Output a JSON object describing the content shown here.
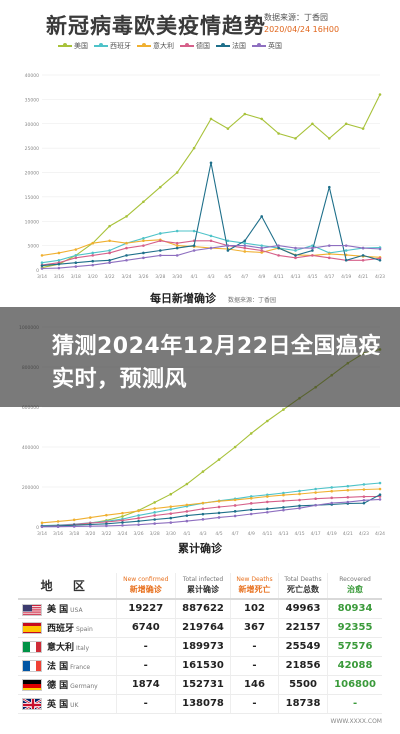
{
  "header": {
    "title": "新冠病毒欧美疫情趋势",
    "source": "数据来源：丁香园",
    "updated": "2020/04/24 16H00"
  },
  "legend": [
    {
      "name": "美国",
      "color": "#a8c23a"
    },
    {
      "name": "西班牙",
      "color": "#4ec3c9"
    },
    {
      "name": "意大利",
      "color": "#f0b030"
    },
    {
      "name": "德国",
      "color": "#d6608a"
    },
    {
      "name": "法国",
      "color": "#1e6f8a"
    },
    {
      "name": "英国",
      "color": "#8e6fc0"
    }
  ],
  "overlay": {
    "headline": "猜测2024年12月22日全国瘟疫实时，预测风"
  },
  "chart1_caption": "每日新增确诊",
  "chart1_caption_small": "数据来源：丁香园",
  "chart2_caption": "累计确诊",
  "chart_data": [
    {
      "type": "line",
      "title": "每日新增确诊",
      "x": [
        "3/14",
        "3/16",
        "3/18",
        "3/20",
        "3/22",
        "3/24",
        "3/26",
        "3/28",
        "3/30",
        "4/1",
        "4/3",
        "4/5",
        "4/7",
        "4/9",
        "4/11",
        "4/13",
        "4/15",
        "4/17",
        "4/19",
        "4/21",
        "4/23"
      ],
      "ylim": [
        0,
        40000
      ],
      "yticks": [
        "0",
        "5000",
        "10000",
        "15000",
        "20000",
        "25000",
        "30000",
        "35000",
        "40000"
      ],
      "series": [
        {
          "name": "美国",
          "color": "#a8c23a",
          "values": [
            500,
            1200,
            3000,
            5500,
            9000,
            11000,
            14000,
            17000,
            20000,
            25000,
            31000,
            29000,
            32000,
            31000,
            28000,
            27000,
            30000,
            27000,
            30000,
            29000,
            36000
          ]
        },
        {
          "name": "西班牙",
          "color": "#4ec3c9",
          "values": [
            1500,
            2000,
            3000,
            3500,
            4000,
            5500,
            6500,
            7500,
            8000,
            8000,
            7000,
            6000,
            5500,
            5000,
            4500,
            4000,
            5000,
            3500,
            4000,
            4500,
            4600
          ]
        },
        {
          "name": "意大利",
          "color": "#f0b030",
          "values": [
            3000,
            3500,
            4200,
            5500,
            6000,
            5500,
            6000,
            6200,
            5000,
            4800,
            4500,
            4300,
            3800,
            3600,
            4500,
            3100,
            3000,
            3300,
            3100,
            2800,
            2600
          ]
        },
        {
          "name": "德国",
          "color": "#d6608a",
          "values": [
            1000,
            1500,
            2500,
            3000,
            3500,
            4500,
            5000,
            6000,
            5500,
            6000,
            6000,
            5000,
            4500,
            4000,
            3000,
            2500,
            3000,
            2500,
            2000,
            2000,
            2400
          ]
        },
        {
          "name": "法国",
          "color": "#1e6f8a",
          "values": [
            900,
            1200,
            1500,
            1800,
            2000,
            3000,
            3500,
            4000,
            4500,
            5000,
            22000,
            4000,
            6000,
            11000,
            4500,
            3000,
            4000,
            17000,
            2000,
            3000,
            2000
          ]
        },
        {
          "name": "英国",
          "color": "#8e6fc0",
          "values": [
            300,
            400,
            700,
            1000,
            1500,
            2000,
            2500,
            3000,
            3000,
            4000,
            4500,
            5000,
            5000,
            4500,
            5000,
            4500,
            4500,
            5000,
            5000,
            4500,
            4300
          ]
        }
      ]
    },
    {
      "type": "line",
      "title": "累计确诊",
      "x": [
        "3/14",
        "3/16",
        "3/18",
        "3/20",
        "3/22",
        "3/24",
        "3/26",
        "3/28",
        "3/30",
        "4/1",
        "4/3",
        "4/5",
        "4/7",
        "4/9",
        "4/11",
        "4/13",
        "4/15",
        "4/17",
        "4/19",
        "4/21",
        "4/23",
        "4/24"
      ],
      "ylim": [
        0,
        1000000
      ],
      "yticks": [
        "0",
        "200000",
        "400000",
        "600000",
        "800000",
        "1000000"
      ],
      "series": [
        {
          "name": "美国",
          "color": "#a8c23a",
          "values": [
            2700,
            4600,
            9400,
            19000,
            33000,
            53000,
            83000,
            123000,
            164000,
            215000,
            277000,
            337000,
            400000,
            468000,
            530000,
            587000,
            644000,
            699000,
            759000,
            819000,
            869000,
            887622
          ]
        },
        {
          "name": "西班牙",
          "color": "#4ec3c9",
          "values": [
            6400,
            9900,
            13900,
            21000,
            28600,
            39700,
            57800,
            73200,
            87900,
            104000,
            119000,
            131000,
            141000,
            153000,
            161000,
            170000,
            180000,
            190000,
            198000,
            204000,
            213000,
            219764
          ]
        },
        {
          "name": "意大利",
          "color": "#f0b030",
          "values": [
            21000,
            27900,
            35700,
            47000,
            59100,
            69200,
            80500,
            92500,
            101700,
            110600,
            119800,
            128900,
            135600,
            143600,
            152300,
            159500,
            165100,
            172400,
            178900,
            183900,
            187300,
            189973
          ]
        },
        {
          "name": "德国",
          "color": "#d6608a",
          "values": [
            4600,
            7300,
            12300,
            19800,
            24900,
            32900,
            43900,
            57700,
            66900,
            77900,
            91100,
            100100,
            107700,
            118200,
            125400,
            130400,
            134800,
            141400,
            145700,
            148500,
            151800,
            152731
          ]
        },
        {
          "name": "法国",
          "color": "#1e6f8a",
          "values": [
            4500,
            5400,
            9100,
            12600,
            16000,
            22300,
            29100,
            37500,
            44500,
            56900,
            64300,
            70500,
            78200,
            86300,
            90700,
            98000,
            106200,
            109200,
            112600,
            117300,
            119200,
            161530
          ]
        },
        {
          "name": "英国",
          "color": "#8e6fc0",
          "values": [
            1100,
            1500,
            2600,
            4000,
            5700,
            8100,
            11600,
            17100,
            22100,
            29500,
            38200,
            47800,
            55200,
            65000,
            73800,
            84300,
            94000,
            108700,
            120000,
            124700,
            133500,
            138078
          ]
        }
      ]
    }
  ],
  "table": {
    "headers": [
      {
        "title": "地 区",
        "sub": ""
      },
      {
        "title": "新增确诊",
        "sub": "New confirmed"
      },
      {
        "title": "累计确诊",
        "sub": "Total infected"
      },
      {
        "title": "新增死亡",
        "sub": "New Deaths"
      },
      {
        "title": "死亡总数",
        "sub": "Total Deaths"
      },
      {
        "title": "治愈",
        "sub": "Recovered"
      }
    ],
    "rows": [
      {
        "cn": "美 国",
        "en": "USA",
        "flag": "usa",
        "new_confirmed": "19227",
        "total": "887622",
        "new_deaths": "102",
        "deaths": "49963",
        "recovered": "80934"
      },
      {
        "cn": "西班牙",
        "en": "Spain",
        "flag": "spain",
        "new_confirmed": "6740",
        "total": "219764",
        "new_deaths": "367",
        "deaths": "22157",
        "recovered": "92355"
      },
      {
        "cn": "意大利",
        "en": "Italy",
        "flag": "italy",
        "new_confirmed": "-",
        "total": "189973",
        "new_deaths": "-",
        "deaths": "25549",
        "recovered": "57576"
      },
      {
        "cn": "法 国",
        "en": "France",
        "flag": "france",
        "new_confirmed": "-",
        "total": "161530",
        "new_deaths": "-",
        "deaths": "21856",
        "recovered": "42088"
      },
      {
        "cn": "德 国",
        "en": "Germany",
        "flag": "germany",
        "new_confirmed": "1874",
        "total": "152731",
        "new_deaths": "146",
        "deaths": "5500",
        "recovered": "106800"
      },
      {
        "cn": "英 国",
        "en": "UK",
        "flag": "uk",
        "new_confirmed": "-",
        "total": "138078",
        "new_deaths": "-",
        "deaths": "18738",
        "recovered": "-"
      }
    ]
  },
  "footer": {
    "text": "WWW.XXXX.COM"
  }
}
